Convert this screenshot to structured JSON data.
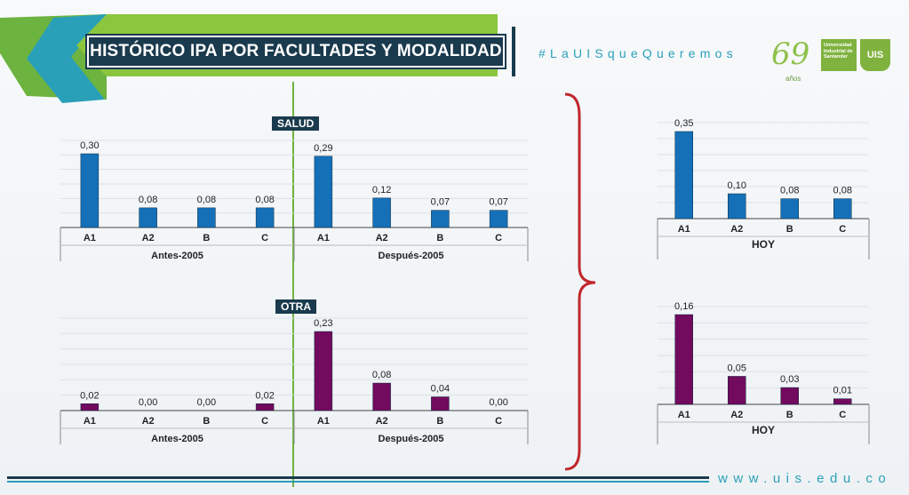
{
  "header": {
    "title": "HISTÓRICO IPA POR FACULTADES Y MODALIDAD",
    "hashtag": "#LaUISqueQueremos",
    "logo_69": "69",
    "logo_69_sub": "años",
    "university": "Universidad Industrial de Santander",
    "shield": "UIS"
  },
  "footer": {
    "website": "www.uis.edu.co"
  },
  "colors": {
    "salud": "#1570b8",
    "otra": "#720a5e",
    "divider": "#6db33f",
    "bracket": "#c0272d",
    "title_bg": "#1a3a4d",
    "accent": "#2aa0b8"
  },
  "chart_data": [
    {
      "type": "bar",
      "title": "SALUD",
      "categories": [
        "A1",
        "A2",
        "B",
        "C",
        "A1",
        "A2",
        "B",
        "C"
      ],
      "groups": [
        "Antes-2005",
        "Después-2005"
      ],
      "values": [
        0.3,
        0.08,
        0.08,
        0.08,
        0.29,
        0.12,
        0.07,
        0.07
      ],
      "labels": [
        "0,30",
        "0,08",
        "0,08",
        "0,08",
        "0,29",
        "0,12",
        "0,07",
        "0,07"
      ],
      "ylim": [
        0,
        0.35
      ],
      "color": "#1570b8"
    },
    {
      "type": "bar",
      "title": "OTRA",
      "categories": [
        "A1",
        "A2",
        "B",
        "C",
        "A1",
        "A2",
        "B",
        "C"
      ],
      "groups": [
        "Antes-2005",
        "Después-2005"
      ],
      "values": [
        0.02,
        0.0,
        0.0,
        0.02,
        0.23,
        0.08,
        0.04,
        0.0
      ],
      "labels": [
        "0,02",
        "0,00",
        "0,00",
        "0,02",
        "0,23",
        "0,08",
        "0,04",
        "0,00"
      ],
      "ylim": [
        0,
        0.35
      ],
      "color": "#720a5e"
    },
    {
      "type": "bar",
      "title": "",
      "categories": [
        "A1",
        "A2",
        "B",
        "C"
      ],
      "groups": [
        "HOY"
      ],
      "values": [
        0.35,
        0.1,
        0.08,
        0.08
      ],
      "labels": [
        "0,35",
        "0,10",
        "0,08",
        "0,08"
      ],
      "ylim": [
        0,
        0.35
      ],
      "color": "#1570b8"
    },
    {
      "type": "bar",
      "title": "",
      "categories": [
        "A1",
        "A2",
        "B",
        "C"
      ],
      "groups": [
        "HOY"
      ],
      "values": [
        0.16,
        0.05,
        0.03,
        0.01
      ],
      "labels": [
        "0,16",
        "0,05",
        "0,03",
        "0,01"
      ],
      "ylim": [
        0,
        0.16
      ],
      "color": "#720a5e"
    }
  ]
}
